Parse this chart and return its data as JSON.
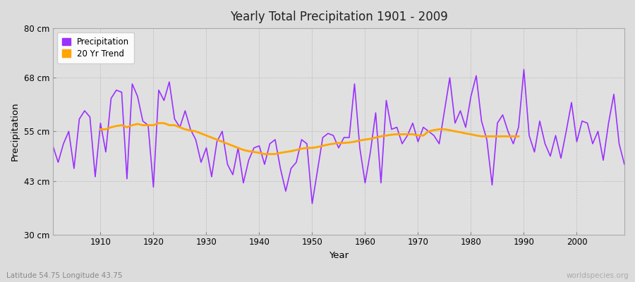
{
  "title": "Yearly Total Precipitation 1901 - 2009",
  "xlabel": "Year",
  "ylabel": "Precipitation",
  "subtitle_left": "Latitude 54.75 Longitude 43.75",
  "subtitle_right": "worldspecies.org",
  "ylim": [
    30,
    80
  ],
  "yticks": [
    30,
    43,
    55,
    68,
    80
  ],
  "ytick_labels": [
    "30 cm",
    "43 cm",
    "55 cm",
    "68 cm",
    "80 cm"
  ],
  "xlim": [
    1901,
    2009
  ],
  "xticks": [
    1910,
    1920,
    1930,
    1940,
    1950,
    1960,
    1970,
    1980,
    1990,
    2000
  ],
  "precip_color": "#9B30FF",
  "trend_color": "#FFA500",
  "plot_bg_color": "#E0E0E0",
  "fig_bg_color": "#DCDCDC",
  "legend_labels": [
    "Precipitation",
    "20 Yr Trend"
  ],
  "years": [
    1901,
    1902,
    1903,
    1904,
    1905,
    1906,
    1907,
    1908,
    1909,
    1910,
    1911,
    1912,
    1913,
    1914,
    1915,
    1916,
    1917,
    1918,
    1919,
    1920,
    1921,
    1922,
    1923,
    1924,
    1925,
    1926,
    1927,
    1928,
    1929,
    1930,
    1931,
    1932,
    1933,
    1934,
    1935,
    1936,
    1937,
    1938,
    1939,
    1940,
    1941,
    1942,
    1943,
    1944,
    1945,
    1946,
    1947,
    1948,
    1949,
    1950,
    1951,
    1952,
    1953,
    1954,
    1955,
    1956,
    1957,
    1958,
    1959,
    1960,
    1961,
    1962,
    1963,
    1964,
    1965,
    1966,
    1967,
    1968,
    1969,
    1970,
    1971,
    1972,
    1973,
    1974,
    1975,
    1976,
    1977,
    1978,
    1979,
    1980,
    1981,
    1982,
    1983,
    1984,
    1985,
    1986,
    1987,
    1988,
    1989,
    1990,
    1991,
    1992,
    1993,
    1994,
    1995,
    1996,
    1997,
    1998,
    1999,
    2000,
    2001,
    2002,
    2003,
    2004,
    2005,
    2006,
    2007,
    2008,
    2009
  ],
  "precip": [
    51.5,
    47.5,
    52.0,
    55.0,
    46.0,
    58.0,
    60.0,
    58.5,
    44.0,
    57.0,
    50.0,
    63.0,
    65.0,
    64.5,
    43.5,
    66.5,
    63.5,
    57.5,
    56.5,
    41.5,
    65.0,
    62.5,
    67.0,
    58.0,
    56.0,
    60.0,
    55.5,
    53.0,
    47.5,
    51.0,
    44.0,
    52.5,
    55.0,
    47.0,
    44.5,
    51.0,
    42.5,
    48.0,
    51.0,
    51.5,
    47.0,
    52.0,
    53.0,
    46.0,
    40.5,
    46.0,
    47.5,
    53.0,
    52.0,
    37.5,
    45.5,
    53.5,
    54.5,
    54.0,
    51.0,
    53.5,
    53.5,
    66.5,
    51.0,
    42.5,
    50.0,
    59.5,
    42.5,
    62.5,
    55.5,
    56.0,
    52.0,
    54.0,
    57.0,
    52.5,
    56.0,
    55.0,
    54.0,
    52.0,
    60.0,
    68.0,
    57.0,
    60.0,
    56.0,
    63.5,
    68.5,
    57.5,
    53.0,
    42.0,
    57.0,
    59.0,
    55.0,
    52.0,
    56.0,
    70.0,
    54.0,
    50.0,
    57.5,
    52.0,
    49.0,
    54.0,
    48.5,
    55.0,
    62.0,
    52.5,
    57.5,
    57.0,
    52.0,
    55.0,
    48.0,
    57.0,
    64.0,
    52.0,
    47.0
  ],
  "trend": [
    null,
    null,
    null,
    null,
    null,
    null,
    null,
    null,
    null,
    55.5,
    55.5,
    56.0,
    56.3,
    56.5,
    56.0,
    56.5,
    56.8,
    56.5,
    56.5,
    56.5,
    57.0,
    57.0,
    56.5,
    56.5,
    56.0,
    55.5,
    55.2,
    55.0,
    54.5,
    54.0,
    53.5,
    53.0,
    52.5,
    52.0,
    51.5,
    51.0,
    50.5,
    50.2,
    50.0,
    49.8,
    49.5,
    49.5,
    49.5,
    49.8,
    50.0,
    50.2,
    50.5,
    50.8,
    51.0,
    51.0,
    51.2,
    51.5,
    51.8,
    52.0,
    52.2,
    52.2,
    52.3,
    52.5,
    52.8,
    53.0,
    53.2,
    53.5,
    53.8,
    54.0,
    54.2,
    54.3,
    54.3,
    54.3,
    54.3,
    54.0,
    54.0,
    55.0,
    55.3,
    55.5,
    55.5,
    55.3,
    55.0,
    54.8,
    54.5,
    54.3,
    54.0,
    53.8,
    53.8,
    53.8,
    53.8,
    53.8,
    53.8,
    53.8,
    53.8,
    null,
    null,
    null,
    null,
    null,
    null,
    null,
    null,
    null,
    null,
    null,
    null,
    null,
    null,
    null,
    null,
    null,
    null,
    null
  ]
}
